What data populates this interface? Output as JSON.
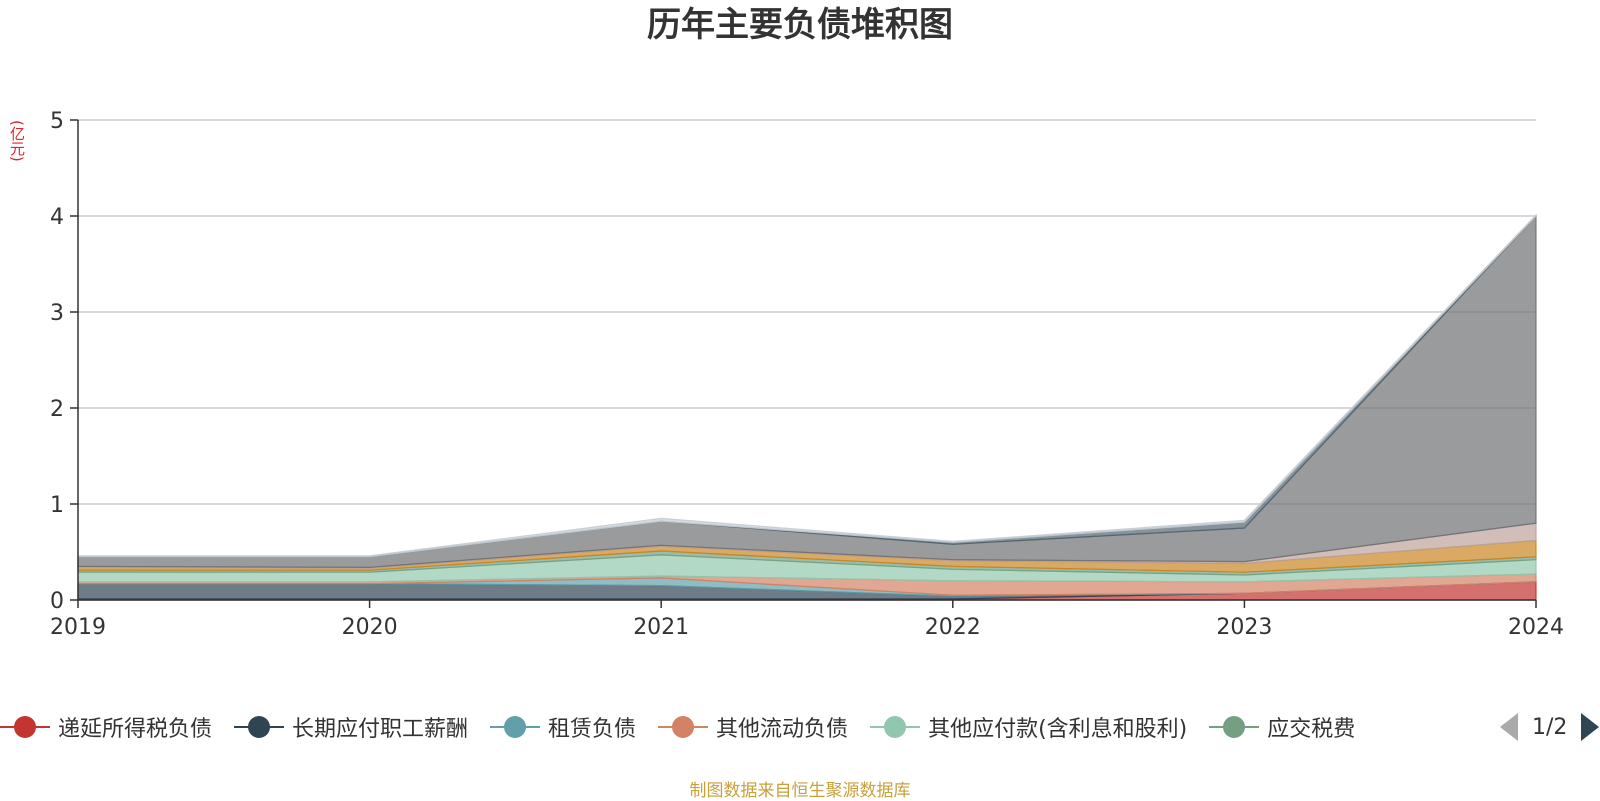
{
  "chart_data": {
    "type": "area",
    "title": "历年主要负债堆积图",
    "unit_label": "(亿元)",
    "x": [
      "2019",
      "2020",
      "2021",
      "2022",
      "2023",
      "2024"
    ],
    "ylim": [
      0,
      5
    ],
    "yticks": [
      "0",
      "1",
      "2",
      "3",
      "4",
      "5"
    ],
    "grid": true,
    "stacked": true,
    "legend_position": "bottom",
    "legend_page": "1/2",
    "series": [
      {
        "name": "递延所得税负债",
        "color": "#c23531",
        "values": [
          0.01,
          0.01,
          0.01,
          0.01,
          0.07,
          0.19
        ]
      },
      {
        "name": "长期应付职工薪酬",
        "color": "#2f4554",
        "values": [
          0.16,
          0.16,
          0.14,
          0.03,
          0.0,
          0.0
        ]
      },
      {
        "name": "租赁负债",
        "color": "#61a0a8",
        "values": [
          0.0,
          0.0,
          0.08,
          0.01,
          0.0,
          0.0
        ]
      },
      {
        "name": "其他流动负债",
        "color": "#d48265",
        "values": [
          0.02,
          0.02,
          0.02,
          0.15,
          0.12,
          0.08
        ]
      },
      {
        "name": "其他应付款(含利息和股利)",
        "color": "#91c7ae",
        "values": [
          0.1,
          0.1,
          0.22,
          0.12,
          0.07,
          0.15
        ]
      },
      {
        "name": "应交税费",
        "color": "#749f83",
        "values": [
          0.02,
          0.02,
          0.04,
          0.03,
          0.03,
          0.03
        ]
      },
      {
        "color": "#ca8622",
        "values": [
          0.03,
          0.02,
          0.05,
          0.06,
          0.09,
          0.17
        ]
      },
      {
        "color": "#bda29a",
        "values": [
          0.01,
          0.01,
          0.01,
          0.01,
          0.02,
          0.18
        ]
      },
      {
        "color": "#6e7074",
        "values": [
          0.1,
          0.11,
          0.25,
          0.16,
          0.35,
          3.2
        ]
      },
      {
        "color": "#546570",
        "values": [
          0.0,
          0.0,
          0.0,
          0.02,
          0.06,
          0.0
        ]
      },
      {
        "color": "#c4ccd3",
        "values": [
          0.01,
          0.01,
          0.03,
          0.01,
          0.02,
          0.01
        ]
      }
    ]
  },
  "footer": {
    "source": "制图数据来自恒生聚源数据库"
  }
}
